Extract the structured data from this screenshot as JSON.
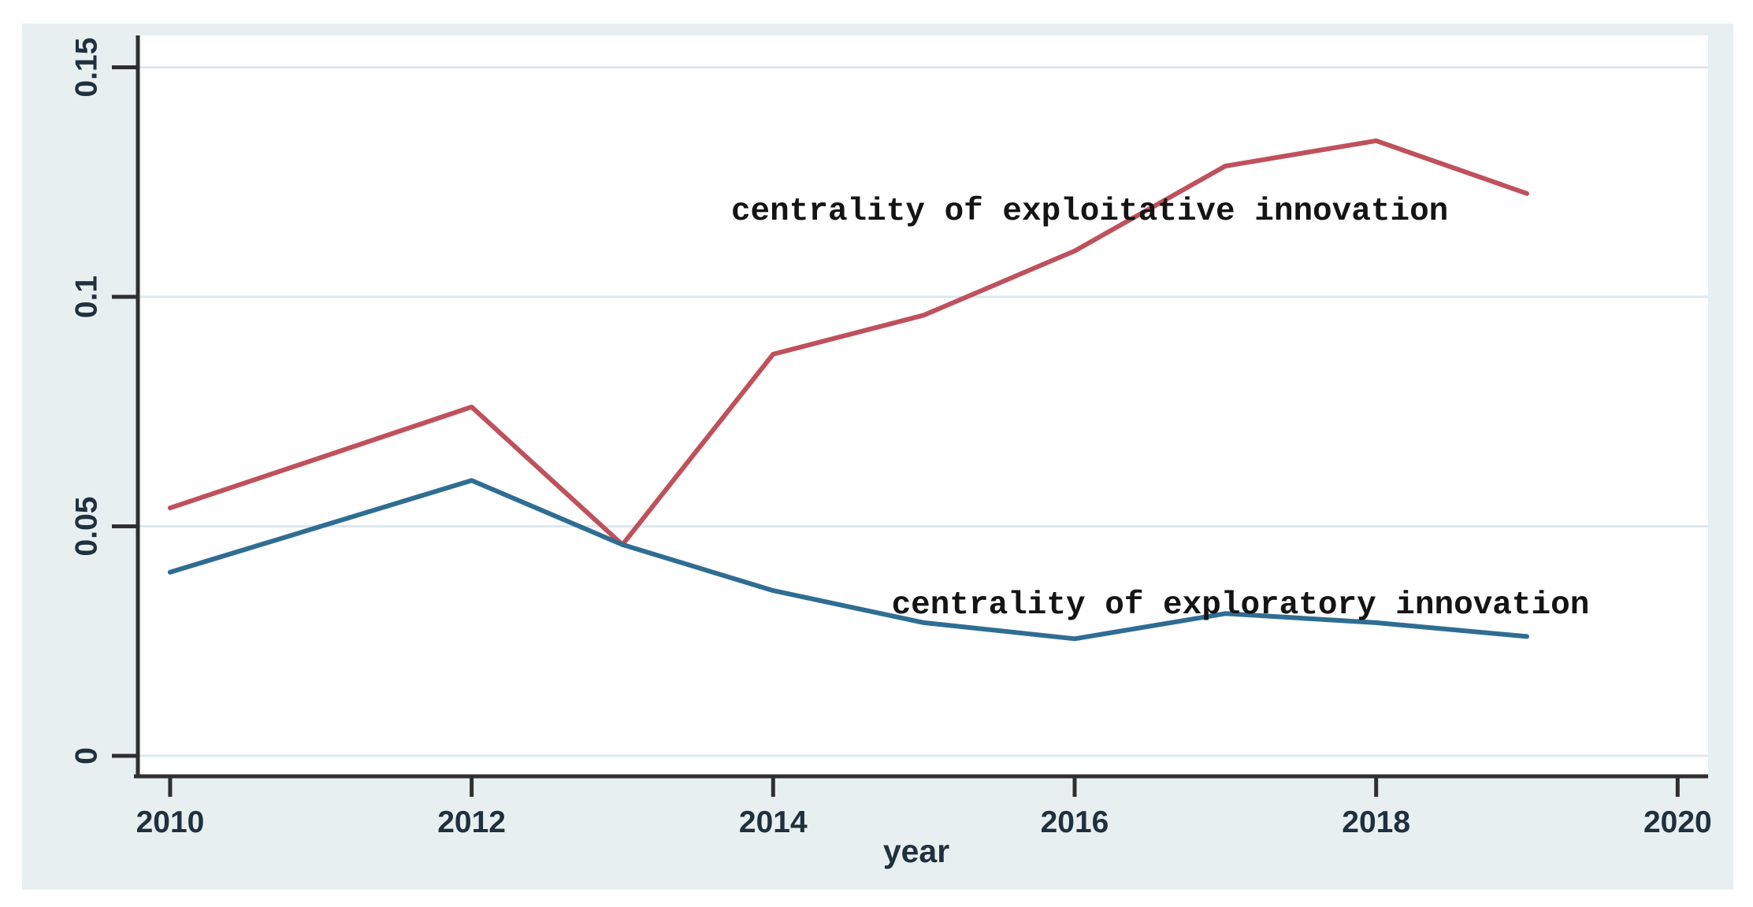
{
  "figure": {
    "outer_background_color": "#ffffff",
    "background_color": "#e7eff1",
    "plot_background_color": "#ffffff",
    "gridline_color": "#dce9ee",
    "axis_color": "#2f2f2f",
    "tick_label_color": "#20303c",
    "annotation_color": "#141414"
  },
  "chart_data": {
    "type": "line",
    "title": "",
    "xlabel": "year",
    "ylabel": "",
    "x": [
      2010,
      2011,
      2012,
      2013,
      2014,
      2015,
      2016,
      2017,
      2018,
      2019
    ],
    "series": [
      {
        "name": "centrality of exploitative innovation",
        "color": "#bf515c",
        "values": [
          0.054,
          0.065,
          0.076,
          0.046,
          0.0875,
          0.096,
          0.11,
          0.1285,
          0.134,
          0.1225
        ]
      },
      {
        "name": "centrality of exploratory innovation",
        "color": "#2f6d93",
        "values": [
          0.04,
          0.05,
          0.06,
          0.046,
          0.036,
          0.029,
          0.0255,
          0.031,
          0.029,
          0.026
        ]
      }
    ],
    "x_ticks": [
      2010,
      2012,
      2014,
      2016,
      2018,
      2020
    ],
    "x_tick_labels": [
      "2010",
      "2012",
      "2014",
      "2016",
      "2018",
      "2020"
    ],
    "y_ticks": [
      0,
      0.05,
      0.1,
      0.15
    ],
    "y_tick_labels": [
      "0",
      "0.05",
      "0.1",
      "0.15"
    ],
    "xlim": [
      2009.786,
      2020.202
    ],
    "ylim": [
      -0.00446,
      0.15695
    ],
    "grid": "horizontal",
    "legend_position": "inline-annotations",
    "annotations": [
      {
        "text": "centrality of exploitative innovation",
        "x": 2016.1,
        "y": 0.1187,
        "series": "exploitative"
      },
      {
        "text": "centrality of exploratory innovation",
        "x": 2017.1,
        "y": 0.0329,
        "series": "exploratory"
      }
    ]
  }
}
